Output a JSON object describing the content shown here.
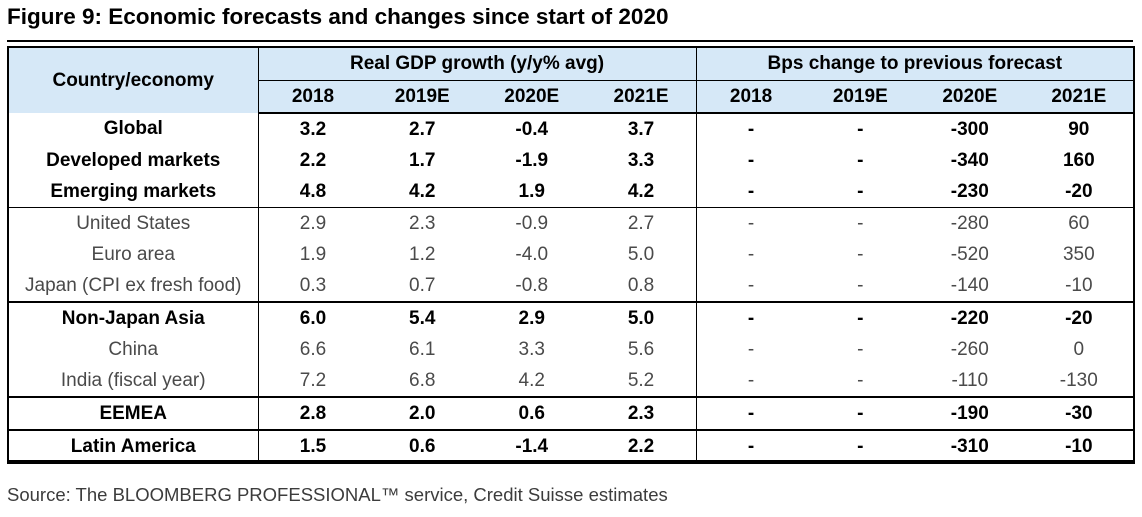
{
  "title": "Figure 9: Economic forecasts and changes since start of 2020",
  "table": {
    "country_header": "Country/economy",
    "groups": [
      "Real GDP growth (y/y% avg)",
      "Bps change to previous forecast"
    ],
    "years": [
      "2018",
      "2019E",
      "2020E",
      "2021E",
      "2018",
      "2019E",
      "2020E",
      "2021E"
    ],
    "rows": [
      {
        "name": "Global",
        "bold": true,
        "values": [
          "3.2",
          "2.7",
          "-0.4",
          "3.7",
          "-",
          "-",
          "-300",
          "90"
        ]
      },
      {
        "name": "Developed markets",
        "bold": true,
        "values": [
          "2.2",
          "1.7",
          "-1.9",
          "3.3",
          "-",
          "-",
          "-340",
          "160"
        ]
      },
      {
        "name": "Emerging markets",
        "bold": true,
        "values": [
          "4.8",
          "4.2",
          "1.9",
          "4.2",
          "-",
          "-",
          "-230",
          "-20"
        ]
      },
      {
        "name": "United States",
        "bold": false,
        "values": [
          "2.9",
          "2.3",
          "-0.9",
          "2.7",
          "-",
          "-",
          "-280",
          "60"
        ]
      },
      {
        "name": "Euro area",
        "bold": false,
        "values": [
          "1.9",
          "1.2",
          "-4.0",
          "5.0",
          "-",
          "-",
          "-520",
          "350"
        ]
      },
      {
        "name": "Japan (CPI ex fresh food)",
        "bold": false,
        "values": [
          "0.3",
          "0.7",
          "-0.8",
          "0.8",
          "-",
          "-",
          "-140",
          "-10"
        ]
      },
      {
        "name": "Non-Japan Asia",
        "bold": true,
        "values": [
          "6.0",
          "5.4",
          "2.9",
          "5.0",
          "-",
          "-",
          "-220",
          "-20"
        ]
      },
      {
        "name": "China",
        "bold": false,
        "values": [
          "6.6",
          "6.1",
          "3.3",
          "5.6",
          "-",
          "-",
          "-260",
          "0"
        ]
      },
      {
        "name": "India (fiscal year)",
        "bold": false,
        "values": [
          "7.2",
          "6.8",
          "4.2",
          "5.2",
          "-",
          "-",
          "-110",
          "-130"
        ]
      },
      {
        "name": "EEMEA",
        "bold": true,
        "values": [
          "2.8",
          "2.0",
          "0.6",
          "2.3",
          "-",
          "-",
          "-190",
          "-30"
        ]
      },
      {
        "name": "Latin America",
        "bold": true,
        "values": [
          "1.5",
          "0.6",
          "-1.4",
          "2.2",
          "-",
          "-",
          "-310",
          "-10"
        ]
      }
    ]
  },
  "source": "Source: The BLOOMBERG PROFESSIONAL™ service, Credit Suisse estimates"
}
